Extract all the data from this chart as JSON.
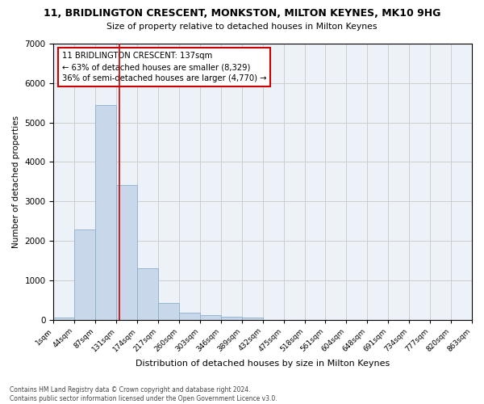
{
  "title": "11, BRIDLINGTON CRESCENT, MONKSTON, MILTON KEYNES, MK10 9HG",
  "subtitle": "Size of property relative to detached houses in Milton Keynes",
  "xlabel": "Distribution of detached houses by size in Milton Keynes",
  "ylabel": "Number of detached properties",
  "bar_values": [
    60,
    2280,
    5450,
    3420,
    1300,
    420,
    175,
    110,
    80,
    45,
    0,
    0,
    0,
    0,
    0,
    0,
    0,
    0,
    0,
    0
  ],
  "x_labels": [
    "1sqm",
    "44sqm",
    "87sqm",
    "131sqm",
    "174sqm",
    "217sqm",
    "260sqm",
    "303sqm",
    "346sqm",
    "389sqm",
    "432sqm",
    "475sqm",
    "518sqm",
    "561sqm",
    "604sqm",
    "648sqm",
    "691sqm",
    "734sqm",
    "777sqm",
    "820sqm",
    "863sqm"
  ],
  "bar_color": "#c8d8ea",
  "bar_edge_color": "#8ab0cc",
  "grid_color": "#c8c8c8",
  "bg_color": "#edf2f8",
  "vline_x": 3.14,
  "vline_color": "#cc0000",
  "annotation_text": "11 BRIDLINGTON CRESCENT: 137sqm\n← 63% of detached houses are smaller (8,329)\n36% of semi-detached houses are larger (4,770) →",
  "annotation_box_color": "#cc0000",
  "ylim": [
    0,
    7000
  ],
  "yticks": [
    0,
    1000,
    2000,
    3000,
    4000,
    5000,
    6000,
    7000
  ],
  "footer": "Contains HM Land Registry data © Crown copyright and database right 2024.\nContains public sector information licensed under the Open Government Licence v3.0."
}
